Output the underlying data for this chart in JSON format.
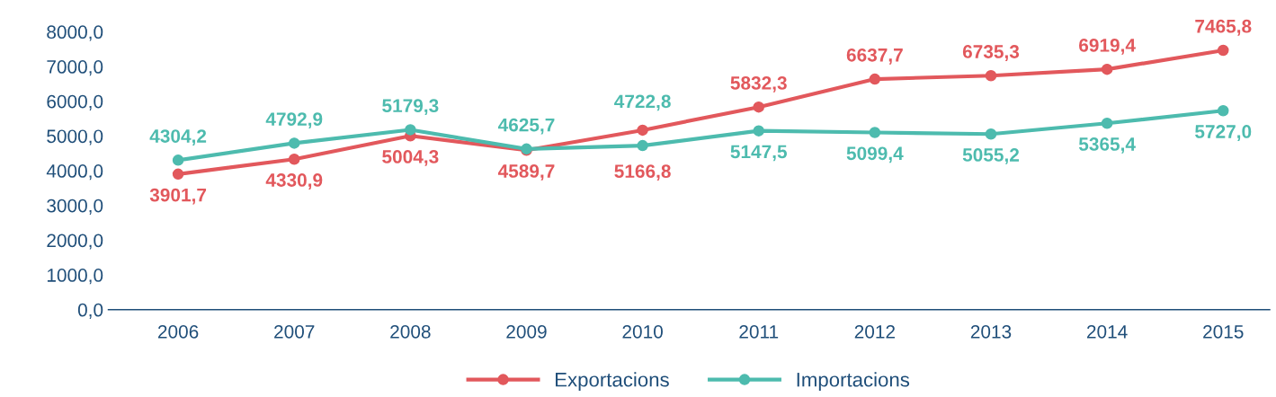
{
  "chart_data": {
    "type": "line",
    "categories": [
      "2006",
      "2007",
      "2008",
      "2009",
      "2010",
      "2011",
      "2012",
      "2013",
      "2014",
      "2015"
    ],
    "series": [
      {
        "name": "Exportacions",
        "color": "#e2585c",
        "values": [
          3901.7,
          4330.9,
          5004.3,
          4589.7,
          5166.8,
          5832.3,
          6637.7,
          6735.3,
          6919.4,
          7465.8
        ],
        "value_labels": [
          "3901,7",
          "4330,9",
          "5004,3",
          "4589,7",
          "5166,8",
          "5832,3",
          "6637,7",
          "6735,3",
          "6919,4",
          "7465,8"
        ]
      },
      {
        "name": "Importacions",
        "color": "#4dbbae",
        "values": [
          4304.2,
          4792.9,
          5179.3,
          4625.7,
          4722.8,
          5147.5,
          5099.4,
          5055.2,
          5365.4,
          5727.0
        ],
        "value_labels": [
          "4304,2",
          "4792,9",
          "5179,3",
          "4625,7",
          "4722,8",
          "5147,5",
          "5099,4",
          "5055,2",
          "5365,4",
          "5727,0"
        ]
      }
    ],
    "ylim": [
      0,
      8000
    ],
    "yticks": [
      {
        "value": 0,
        "label": "0,0"
      },
      {
        "value": 1000,
        "label": "1000,0"
      },
      {
        "value": 2000,
        "label": "2000,0"
      },
      {
        "value": 3000,
        "label": "3000,0"
      },
      {
        "value": 4000,
        "label": "4000,0"
      },
      {
        "value": 5000,
        "label": "5000,0"
      },
      {
        "value": 6000,
        "label": "6000,0"
      },
      {
        "value": 7000,
        "label": "7000,0"
      },
      {
        "value": 8000,
        "label": "8000,0"
      }
    ],
    "grid": false,
    "legend": "bottom",
    "marker": "circle",
    "line_style": "solid"
  }
}
